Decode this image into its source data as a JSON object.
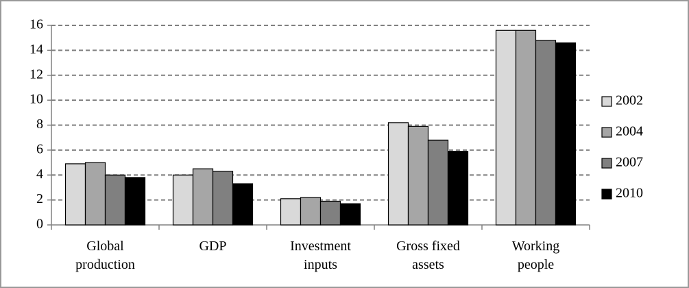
{
  "chart_data": {
    "type": "bar",
    "categories": [
      "Global\nproduction",
      "GDP",
      "Investment\ninputs",
      "Gross fixed\nassets",
      "Working\npeople"
    ],
    "series": [
      {
        "name": "2002",
        "color": "#d9d9d9",
        "values": [
          4.9,
          4.0,
          2.1,
          8.2,
          15.6
        ]
      },
      {
        "name": "2004",
        "color": "#a6a6a6",
        "values": [
          5.0,
          4.5,
          2.2,
          7.9,
          15.6
        ]
      },
      {
        "name": "2007",
        "color": "#808080",
        "values": [
          4.0,
          4.3,
          1.9,
          6.8,
          14.8
        ]
      },
      {
        "name": "2010",
        "color": "#000000",
        "values": [
          3.8,
          3.3,
          1.7,
          5.9,
          14.6
        ]
      }
    ],
    "ylim": [
      0,
      16
    ],
    "yticks": [
      0,
      2,
      4,
      6,
      8,
      10,
      12,
      14,
      16
    ],
    "grid": true,
    "legend": "right"
  }
}
